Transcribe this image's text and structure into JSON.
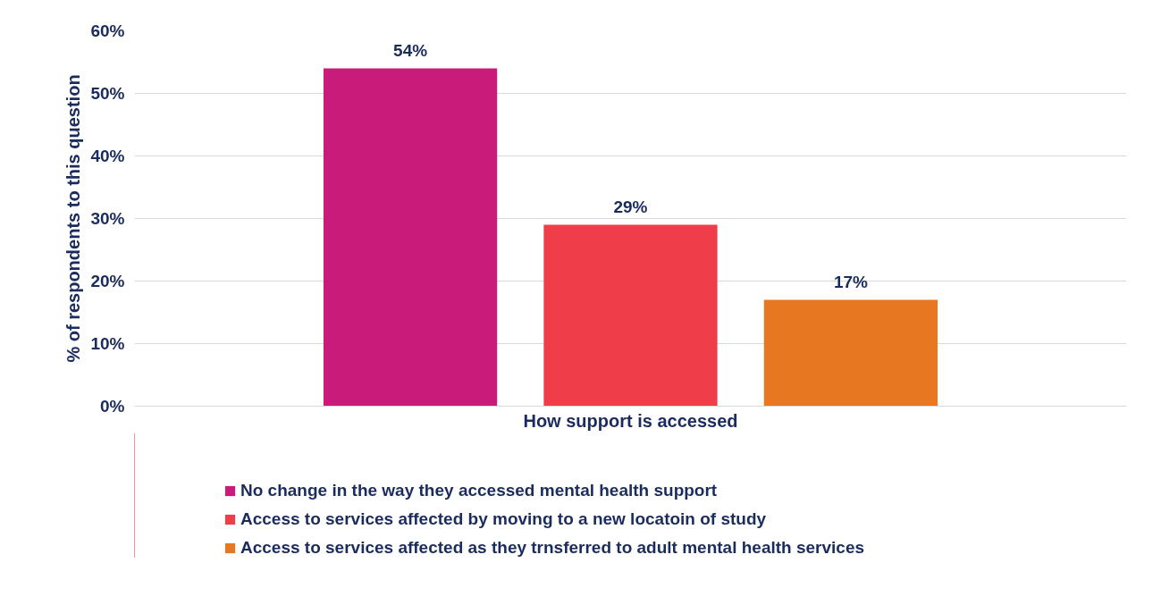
{
  "chart_data": {
    "type": "bar",
    "xlabel": "How support is accessed",
    "ylabel": "% of respondents to this question",
    "categories": [
      null
    ],
    "series": [
      {
        "name": "No change in the way they accessed mental health support",
        "color": "#c91b7a",
        "values": [
          54
        ],
        "value_labels": [
          "54%"
        ]
      },
      {
        "name": "Access to services affected by moving to a new locatoin of study",
        "color": "#ef3e4a",
        "values": [
          29
        ],
        "value_labels": [
          "29%"
        ]
      },
      {
        "name": "Access to services affected as they trnsferred to adult mental health services",
        "color": "#e87722",
        "values": [
          17
        ],
        "value_labels": [
          "17%"
        ]
      }
    ],
    "ylim": [
      0,
      60
    ],
    "yticks": [
      {
        "value": 0,
        "label": "0%"
      },
      {
        "value": 10,
        "label": "10%"
      },
      {
        "value": 20,
        "label": "20%"
      },
      {
        "value": 30,
        "label": "30%"
      },
      {
        "value": 40,
        "label": "40%"
      },
      {
        "value": 50,
        "label": "50%"
      },
      {
        "value": 60,
        "label": "60%"
      }
    ],
    "grid": "y",
    "legend": "bottom"
  }
}
